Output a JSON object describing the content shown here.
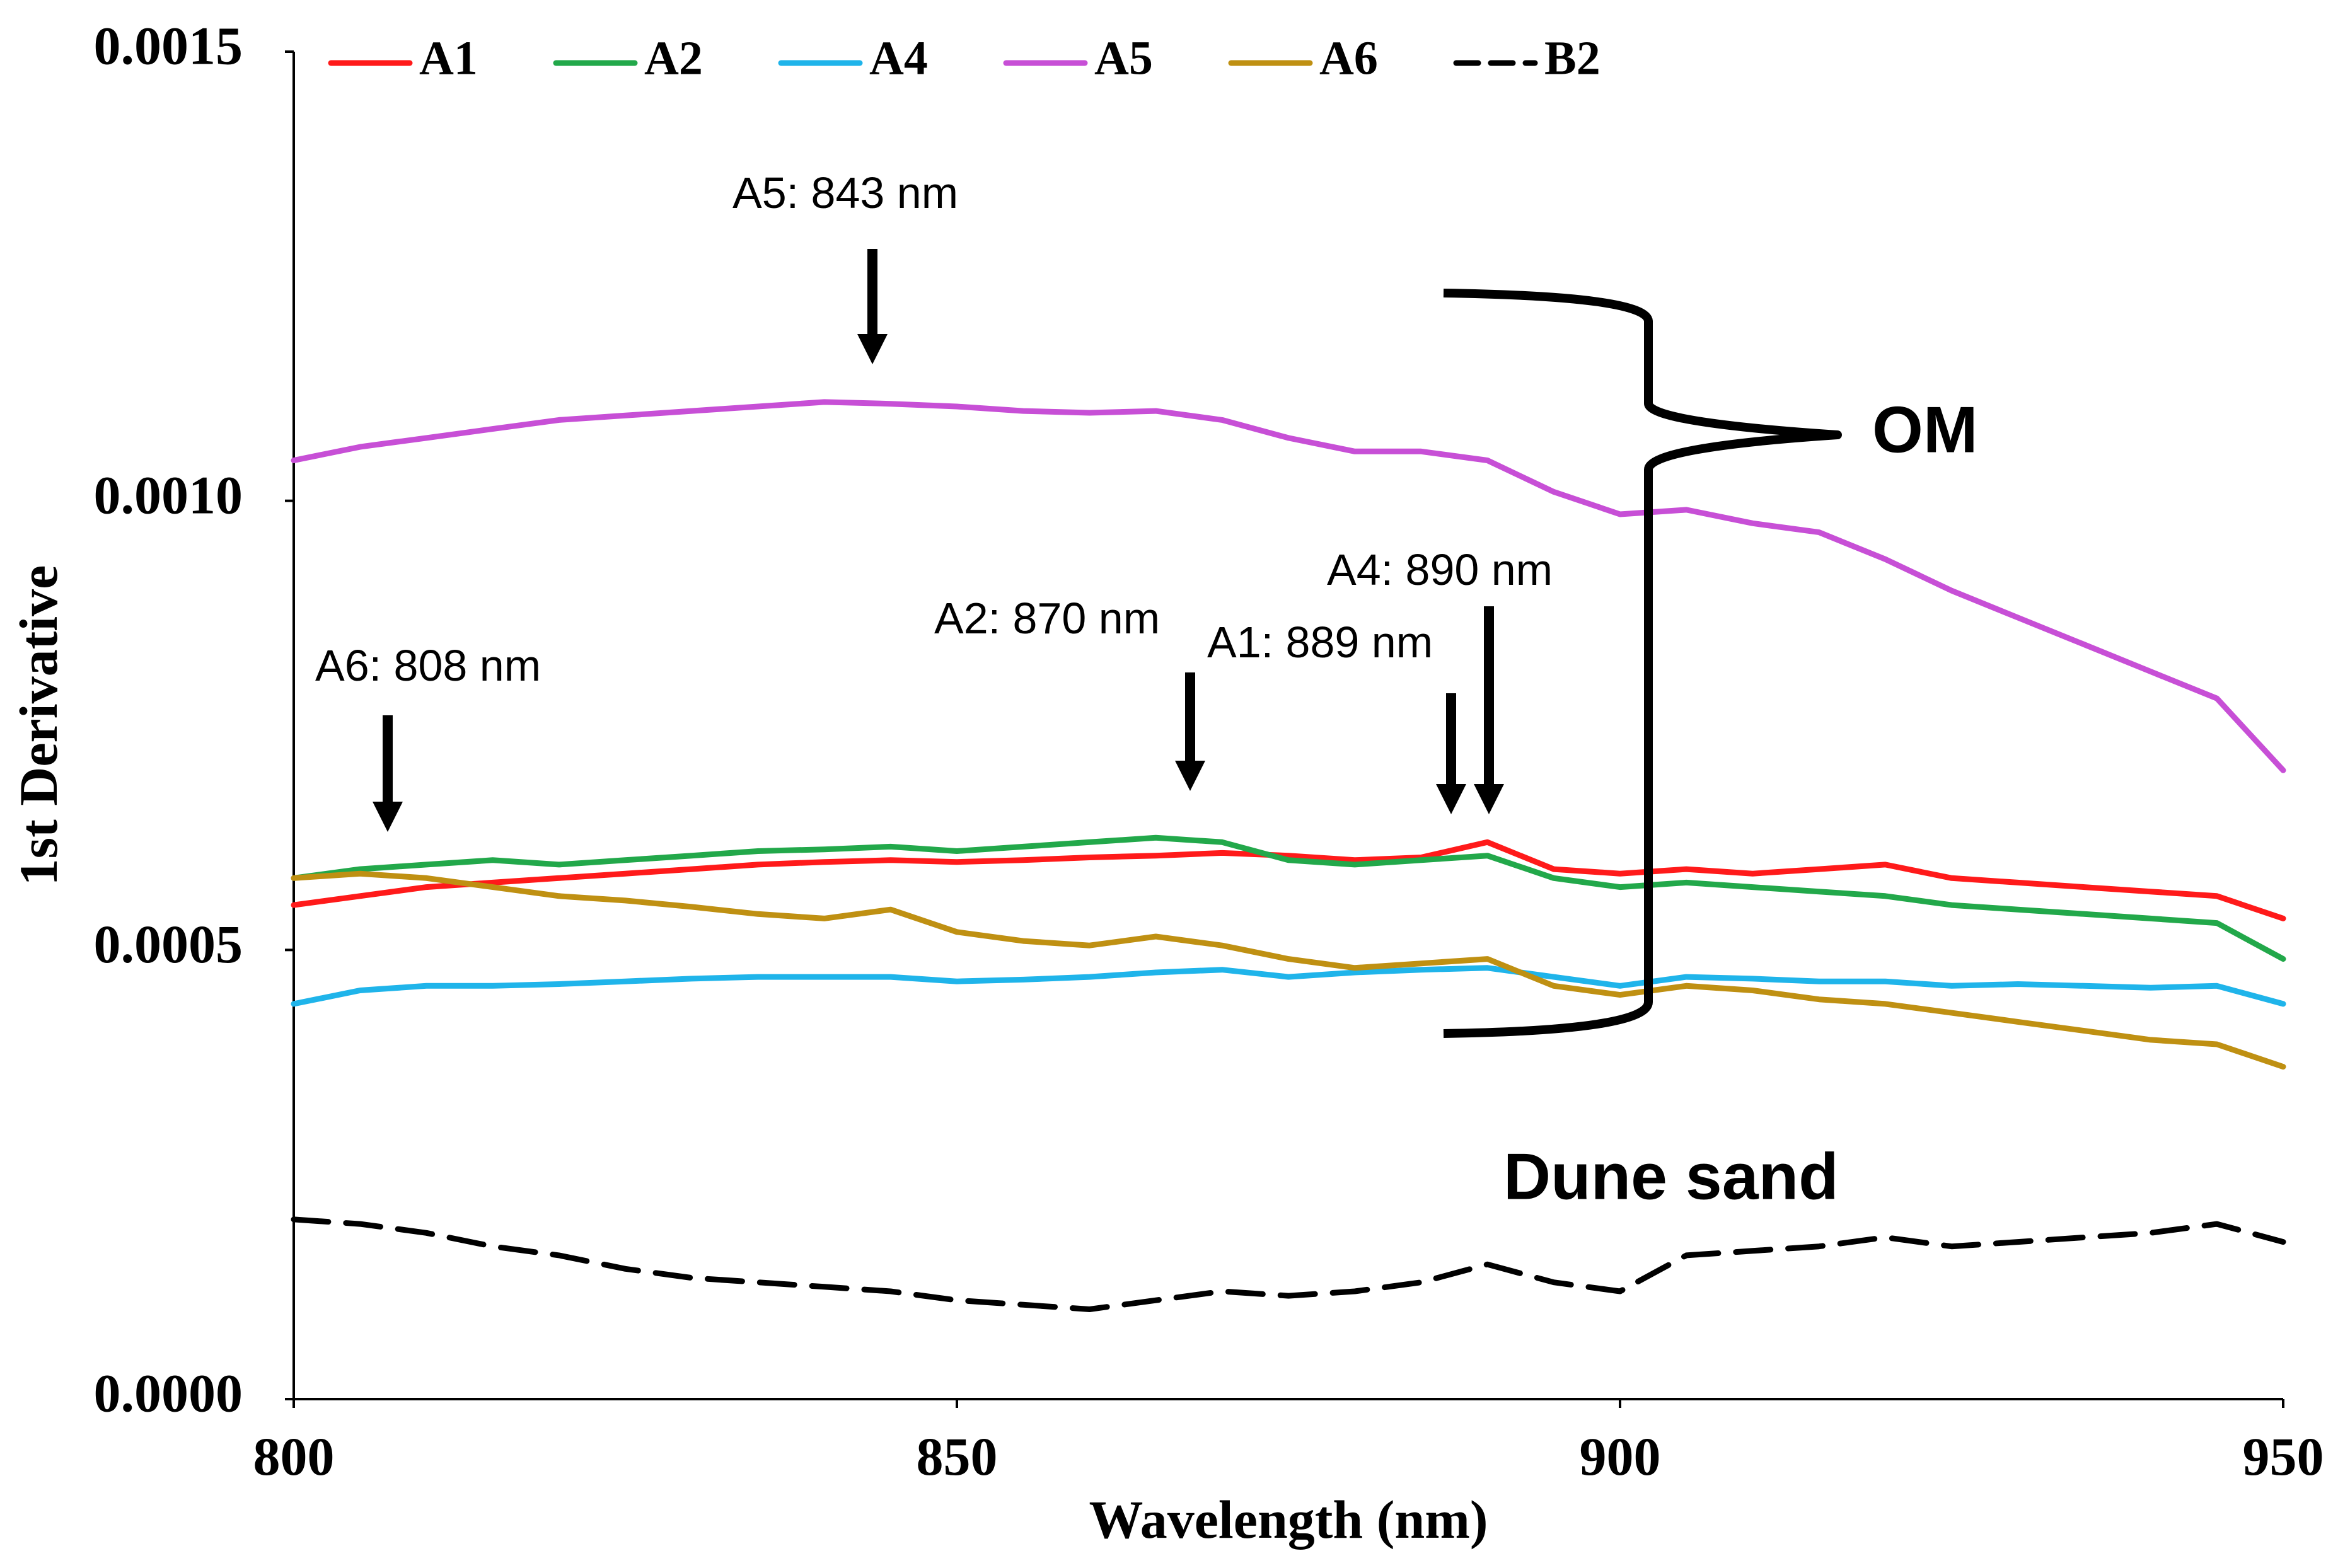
{
  "chart_data": {
    "type": "line",
    "title": "",
    "xlabel": "Wavelength (nm)",
    "ylabel": "1st Derivative",
    "xlim": [
      800,
      950
    ],
    "ylim": [
      0.0,
      0.0015
    ],
    "x_ticks": [
      800,
      850,
      900,
      950
    ],
    "x_tick_labels": [
      "800",
      "850",
      "900",
      "950"
    ],
    "y_ticks": [
      0.0,
      0.0005,
      0.001,
      0.0015
    ],
    "y_tick_labels": [
      "0.0000",
      "0.0005",
      "0.0010",
      "0.0015"
    ],
    "grid": false,
    "legend_position": "top",
    "x": [
      800,
      805,
      810,
      815,
      820,
      825,
      830,
      835,
      840,
      845,
      850,
      855,
      860,
      865,
      870,
      875,
      880,
      885,
      890,
      895,
      900,
      905,
      910,
      915,
      920,
      925,
      930,
      935,
      940,
      945,
      950
    ],
    "series": [
      {
        "name": "A1",
        "color": "#ff1a1a",
        "dash": "solid",
        "values": [
          0.00055,
          0.00056,
          0.00057,
          0.000575,
          0.00058,
          0.000585,
          0.00059,
          0.000595,
          0.000598,
          0.0006,
          0.000598,
          0.0006,
          0.000603,
          0.000605,
          0.000608,
          0.000605,
          0.0006,
          0.000603,
          0.00062,
          0.00059,
          0.000585,
          0.00059,
          0.000585,
          0.00059,
          0.000595,
          0.00058,
          0.000575,
          0.00057,
          0.000565,
          0.00056,
          0.000535
        ]
      },
      {
        "name": "A2",
        "color": "#22a84a",
        "dash": "solid",
        "values": [
          0.00058,
          0.00059,
          0.000595,
          0.0006,
          0.000595,
          0.0006,
          0.000605,
          0.00061,
          0.000612,
          0.000615,
          0.00061,
          0.000615,
          0.00062,
          0.000625,
          0.00062,
          0.0006,
          0.000595,
          0.0006,
          0.000605,
          0.00058,
          0.00057,
          0.000575,
          0.00057,
          0.000565,
          0.00056,
          0.00055,
          0.000545,
          0.00054,
          0.000535,
          0.00053,
          0.00049
        ]
      },
      {
        "name": "A4",
        "color": "#1fb4ea",
        "dash": "solid",
        "values": [
          0.00044,
          0.000455,
          0.00046,
          0.00046,
          0.000462,
          0.000465,
          0.000468,
          0.00047,
          0.00047,
          0.00047,
          0.000465,
          0.000467,
          0.00047,
          0.000475,
          0.000478,
          0.00047,
          0.000475,
          0.000478,
          0.00048,
          0.00047,
          0.00046,
          0.00047,
          0.000468,
          0.000465,
          0.000465,
          0.00046,
          0.000462,
          0.00046,
          0.000458,
          0.00046,
          0.00044
        ]
      },
      {
        "name": "A5",
        "color": "#c74fd6",
        "dash": "solid",
        "values": [
          0.001045,
          0.00106,
          0.00107,
          0.00108,
          0.00109,
          0.001095,
          0.0011,
          0.001105,
          0.00111,
          0.001108,
          0.001105,
          0.0011,
          0.001098,
          0.0011,
          0.00109,
          0.00107,
          0.001055,
          0.001055,
          0.001045,
          0.00101,
          0.000985,
          0.00099,
          0.000975,
          0.000965,
          0.000935,
          0.0009,
          0.00087,
          0.00084,
          0.00081,
          0.00078,
          0.0007
        ]
      },
      {
        "name": "A6",
        "color": "#bf9012",
        "dash": "solid",
        "values": [
          0.00058,
          0.000585,
          0.00058,
          0.00057,
          0.00056,
          0.000555,
          0.000548,
          0.00054,
          0.000535,
          0.000545,
          0.00052,
          0.00051,
          0.000505,
          0.000515,
          0.000505,
          0.00049,
          0.00048,
          0.000485,
          0.00049,
          0.00046,
          0.00045,
          0.00046,
          0.000455,
          0.000445,
          0.00044,
          0.00043,
          0.00042,
          0.00041,
          0.0004,
          0.000395,
          0.00037
        ]
      },
      {
        "name": "B2",
        "color": "#000000",
        "dash": "dashed",
        "values": [
          0.0002,
          0.000195,
          0.000185,
          0.00017,
          0.00016,
          0.000145,
          0.000135,
          0.00013,
          0.000125,
          0.00012,
          0.00011,
          0.000105,
          0.0001,
          0.00011,
          0.00012,
          0.000115,
          0.00012,
          0.00013,
          0.00015,
          0.00013,
          0.00012,
          0.00016,
          0.000165,
          0.00017,
          0.00018,
          0.00017,
          0.000175,
          0.00018,
          0.000185,
          0.000195,
          0.000175
        ]
      }
    ],
    "annotations": [
      {
        "text": "A5: 843 nm",
        "x": 843,
        "y": 0.00115
      },
      {
        "text": "A6: 808 nm",
        "x": 808,
        "y": 0.00065
      },
      {
        "text": "A2: 870 nm",
        "x": 870,
        "y": 0.00068
      },
      {
        "text": "A1: 889 nm",
        "x": 889,
        "y": 0.00065
      },
      {
        "text": "A4: 890 nm",
        "x": 890,
        "y": 0.00069
      }
    ],
    "group_labels": {
      "om": "OM",
      "dune": "Dune sand"
    }
  }
}
